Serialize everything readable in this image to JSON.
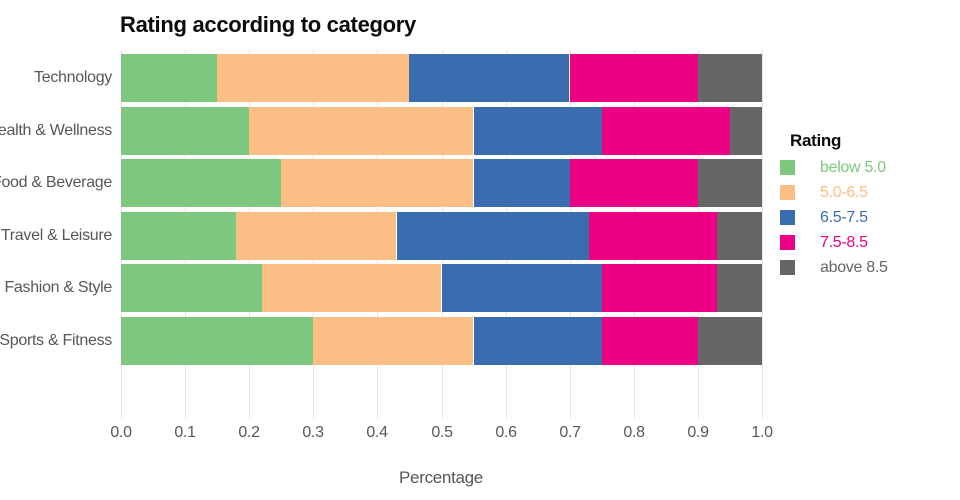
{
  "chart_data": {
    "type": "bar",
    "orientation": "horizontal-stacked",
    "title": "Rating according to category",
    "xlabel": "Percentage",
    "legend_title": "Rating",
    "legend_position": "right",
    "grid": true,
    "xlim": [
      0.0,
      1.0
    ],
    "x_ticks": [
      "0.0",
      "0.1",
      "0.2",
      "0.3",
      "0.4",
      "0.5",
      "0.6",
      "0.7",
      "0.8",
      "0.9",
      "1.0"
    ],
    "categories": [
      "Technology",
      "Health & Wellness",
      "Food & Beverage",
      "Travel & Leisure",
      "Fashion & Style",
      "Sports & Fitness"
    ],
    "series": [
      {
        "name": "below 5.0",
        "color": "#7DC87E",
        "values": [
          0.15,
          0.2,
          0.25,
          0.18,
          0.22,
          0.3
        ]
      },
      {
        "name": "5.0-6.5",
        "color": "#FBBF86",
        "values": [
          0.3,
          0.35,
          0.3,
          0.25,
          0.28,
          0.25
        ]
      },
      {
        "name": "6.5-7.5",
        "color": "#3A6CB0",
        "values": [
          0.25,
          0.2,
          0.15,
          0.3,
          0.25,
          0.2
        ]
      },
      {
        "name": "7.5-8.5",
        "color": "#ED0184",
        "values": [
          0.2,
          0.2,
          0.2,
          0.2,
          0.18,
          0.15
        ]
      },
      {
        "name": "above 8.5",
        "color": "#666666",
        "values": [
          0.1,
          0.05,
          0.1,
          0.07,
          0.07,
          0.1
        ]
      }
    ]
  },
  "style": {
    "background": "#FFFFFF",
    "gridline_color": "#F6DEDE",
    "axis_label_color": "#575757",
    "title_color": "#0B0B0B"
  }
}
